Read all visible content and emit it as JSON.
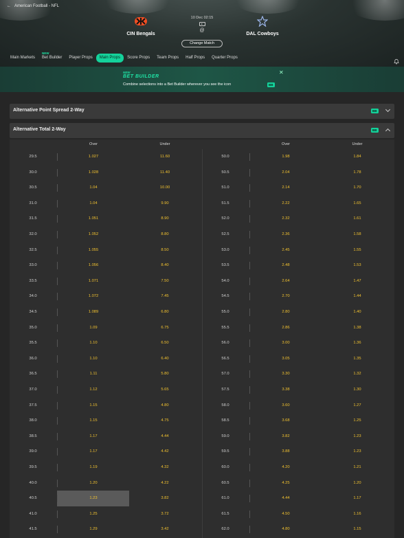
{
  "breadcrumb": "American Football - NFL",
  "match": {
    "home": "CIN Bengals",
    "away": "DAL Cowboys",
    "datetime": "10 Dec 02:15",
    "separator": "@",
    "change_label": "Change Match"
  },
  "tabs": [
    {
      "label": "Main Markets",
      "badge": ""
    },
    {
      "label": "Bet Builder",
      "badge": "NEW"
    },
    {
      "label": "Player Props",
      "badge": ""
    },
    {
      "label": "Main Props",
      "badge": "",
      "active": true
    },
    {
      "label": "Score Props",
      "badge": ""
    },
    {
      "label": "Team Props",
      "badge": ""
    },
    {
      "label": "Half Props",
      "badge": ""
    },
    {
      "label": "Quarter Props",
      "badge": ""
    }
  ],
  "banner": {
    "new_label": "NEW",
    "title": "BET BUILDER",
    "text": "Combine selections into a Bet Builder wherever you see the icon",
    "icon_label": "BB"
  },
  "sections": [
    {
      "label": "Alternative Point Spread 2-Way",
      "badge": "BB"
    },
    {
      "label": "Alternative Total 2-Way",
      "badge": "BB"
    }
  ],
  "columns": {
    "over": "Over",
    "under": "Under"
  },
  "colors": {
    "accent": "#14d29b",
    "odds": "#f2c230",
    "background": "#262626"
  },
  "rows": [
    {
      "l1": "29.5",
      "o1": "1.027",
      "u1": "11.60",
      "l2": "50.0",
      "o2": "1.98",
      "u2": "1.84"
    },
    {
      "l1": "30.0",
      "o1": "1.028",
      "u1": "11.40",
      "l2": "50.5",
      "o2": "2.04",
      "u2": "1.78"
    },
    {
      "l1": "30.5",
      "o1": "1.04",
      "u1": "10.00",
      "l2": "51.0",
      "o2": "2.14",
      "u2": "1.70"
    },
    {
      "l1": "31.0",
      "o1": "1.04",
      "u1": "9.90",
      "l2": "51.5",
      "o2": "2.22",
      "u2": "1.65"
    },
    {
      "l1": "31.5",
      "o1": "1.051",
      "u1": "8.90",
      "l2": "52.0",
      "o2": "2.32",
      "u2": "1.61"
    },
    {
      "l1": "32.0",
      "o1": "1.052",
      "u1": "8.80",
      "l2": "52.5",
      "o2": "2.36",
      "u2": "1.58"
    },
    {
      "l1": "32.5",
      "o1": "1.055",
      "u1": "8.50",
      "l2": "53.0",
      "o2": "2.45",
      "u2": "1.55"
    },
    {
      "l1": "33.0",
      "o1": "1.056",
      "u1": "8.40",
      "l2": "53.5",
      "o2": "2.48",
      "u2": "1.53"
    },
    {
      "l1": "33.5",
      "o1": "1.071",
      "u1": "7.50",
      "l2": "54.0",
      "o2": "2.64",
      "u2": "1.47"
    },
    {
      "l1": "34.0",
      "o1": "1.072",
      "u1": "7.45",
      "l2": "54.5",
      "o2": "2.70",
      "u2": "1.44"
    },
    {
      "l1": "34.5",
      "o1": "1.089",
      "u1": "6.80",
      "l2": "55.0",
      "o2": "2.80",
      "u2": "1.40"
    },
    {
      "l1": "35.0",
      "o1": "1.09",
      "u1": "6.75",
      "l2": "55.5",
      "o2": "2.86",
      "u2": "1.38"
    },
    {
      "l1": "35.5",
      "o1": "1.10",
      "u1": "6.50",
      "l2": "56.0",
      "o2": "3.00",
      "u2": "1.36"
    },
    {
      "l1": "36.0",
      "o1": "1.10",
      "u1": "6.40",
      "l2": "56.5",
      "o2": "3.05",
      "u2": "1.35"
    },
    {
      "l1": "36.5",
      "o1": "1.11",
      "u1": "5.80",
      "l2": "57.0",
      "o2": "3.30",
      "u2": "1.32"
    },
    {
      "l1": "37.0",
      "o1": "1.12",
      "u1": "5.65",
      "l2": "57.5",
      "o2": "3.38",
      "u2": "1.30"
    },
    {
      "l1": "37.5",
      "o1": "1.15",
      "u1": "4.80",
      "l2": "58.0",
      "o2": "3.60",
      "u2": "1.27"
    },
    {
      "l1": "38.0",
      "o1": "1.15",
      "u1": "4.75",
      "l2": "58.5",
      "o2": "3.68",
      "u2": "1.25"
    },
    {
      "l1": "38.5",
      "o1": "1.17",
      "u1": "4.44",
      "l2": "59.0",
      "o2": "3.82",
      "u2": "1.23"
    },
    {
      "l1": "39.0",
      "o1": "1.17",
      "u1": "4.42",
      "l2": "59.5",
      "o2": "3.88",
      "u2": "1.23"
    },
    {
      "l1": "39.5",
      "o1": "1.19",
      "u1": "4.32",
      "l2": "60.0",
      "o2": "4.20",
      "u2": "1.21"
    },
    {
      "l1": "40.0",
      "o1": "1.20",
      "u1": "4.22",
      "l2": "60.5",
      "o2": "4.25",
      "u2": "1.20"
    },
    {
      "l1": "40.5",
      "o1": "1.23",
      "u1": "3.82",
      "l2": "61.0",
      "o2": "4.44",
      "u2": "1.17",
      "selected": true
    },
    {
      "l1": "41.0",
      "o1": "1.25",
      "u1": "3.72",
      "l2": "61.5",
      "o2": "4.50",
      "u2": "1.16"
    },
    {
      "l1": "41.5",
      "o1": "1.29",
      "u1": "3.42",
      "l2": "62.0",
      "o2": "4.80",
      "u2": "1.15"
    }
  ]
}
